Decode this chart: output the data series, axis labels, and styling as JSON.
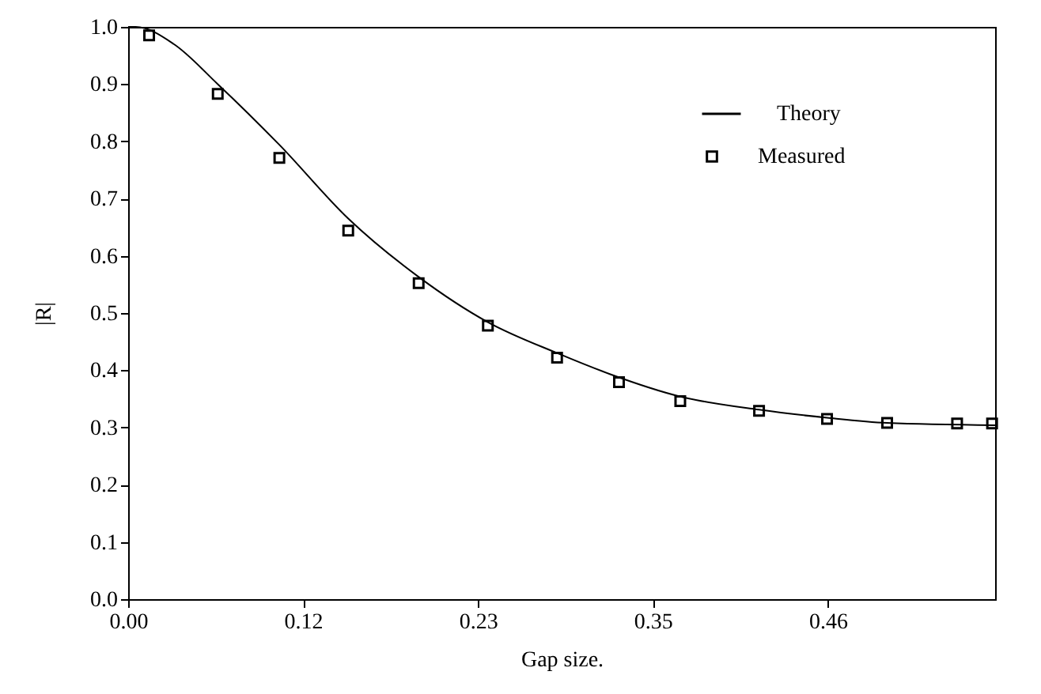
{
  "chart_data": {
    "type": "scatter",
    "xlabel": "Gap size.",
    "ylabel": "|R|",
    "xlim": [
      0,
      0.57
    ],
    "ylim": [
      0,
      1
    ],
    "xticks": [
      {
        "value": 0,
        "label": "0.00"
      },
      {
        "value": 0.115,
        "label": "0.12"
      },
      {
        "value": 0.23,
        "label": "0.23"
      },
      {
        "value": 0.345,
        "label": "0.35"
      },
      {
        "value": 0.46,
        "label": "0.46"
      }
    ],
    "yticks": [
      {
        "value": 0,
        "label": "0.0"
      },
      0.1,
      0.2,
      0.3,
      0.4,
      0.5,
      0.6,
      0.7,
      0.8,
      0.9,
      {
        "value": 1,
        "label": "1.0"
      }
    ],
    "grid": false,
    "legend": "top right",
    "series": [
      {
        "name": "Theory",
        "type": "line",
        "color": "#000000",
        "line_style": "solid",
        "x": [
          0,
          0.005,
          0.03,
          0.0589,
          0.0994,
          0.1447,
          0.191,
          0.2365,
          0.282,
          0.317,
          0.363,
          0.4148,
          0.4595,
          0.499,
          0.57
        ],
        "values": [
          1.0,
          1.0,
          0.97,
          0.9,
          0.794,
          0.665,
          0.563,
          0.484,
          0.43,
          0.393,
          0.354,
          0.331,
          0.317,
          0.308,
          0.304
        ]
      },
      {
        "name": "Measured",
        "color": "#000000",
        "marker": "square",
        "x": [
          0.0138,
          0.0589,
          0.0994,
          0.1447,
          0.191,
          0.2365,
          0.282,
          0.3227,
          0.363,
          0.4148,
          0.4595,
          0.499,
          0.545,
          0.568
        ],
        "values": [
          0.985,
          0.883,
          0.771,
          0.644,
          0.552,
          0.478,
          0.422,
          0.379,
          0.346,
          0.329,
          0.315,
          0.308,
          0.307,
          0.307
        ]
      }
    ]
  }
}
